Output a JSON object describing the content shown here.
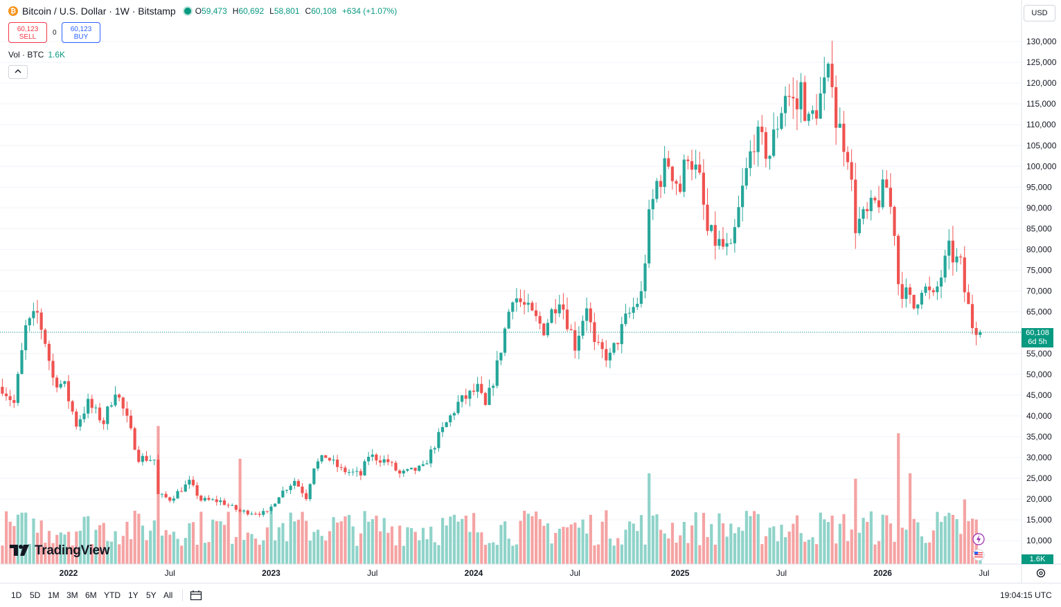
{
  "header": {
    "symbol_title": "Bitcoin / U.S. Dollar · 1W · Bitstamp",
    "btc_badge": "₿",
    "open_label": "O",
    "open": "59,473",
    "high_label": "H",
    "high": "60,692",
    "low_label": "L",
    "low": "58,801",
    "close_label": "C",
    "close": "60,108",
    "change": "+634 (+1.07%)"
  },
  "trade": {
    "sell_price": "60,123",
    "sell_label": "SELL",
    "buy_price": "60,123",
    "buy_label": "BUY",
    "spread": "0"
  },
  "volume_legend": {
    "label": "Vol · BTC",
    "value": "1.6K"
  },
  "currency": "USD",
  "logo_text": "TradingView",
  "price_tag": {
    "price": "60,108",
    "countdown": "6d 5h"
  },
  "volume_tag": "1.6K",
  "range_buttons": [
    "1D",
    "5D",
    "1M",
    "3M",
    "6M",
    "YTD",
    "1Y",
    "5Y",
    "All"
  ],
  "clock": "19:04:15 UTC",
  "colors": {
    "up": "#26a69a",
    "down": "#ef5350",
    "up_volume": "#8fd3c9",
    "down_volume": "#f5a3a3",
    "last_price": "#089981"
  },
  "icons": {
    "calendar": "calendar-icon",
    "settings": "settings-icon",
    "collapse": "chevron-up-icon",
    "lightning": "lightning-icon",
    "flag": "us-flag-icon"
  },
  "chart_data": {
    "type": "candlestick",
    "interval": "1W",
    "ylim": [
      0,
      130000
    ],
    "y_ticks": [
      130000,
      125000,
      120000,
      115000,
      110000,
      105000,
      100000,
      95000,
      90000,
      85000,
      80000,
      75000,
      70000,
      65000,
      60000,
      55000,
      50000,
      45000,
      40000,
      35000,
      30000,
      25000,
      20000,
      15000,
      10000
    ],
    "y_tick_labels": [
      "130,000",
      "125,000",
      "120,000",
      "115,000",
      "110,000",
      "105,000",
      "100,000",
      "95,000",
      "90,000",
      "85,000",
      "80,000",
      "75,000",
      "70,000",
      "65,000",
      "60,000",
      "55,000",
      "50,000",
      "45,000",
      "40,000",
      "35,000",
      "30,000",
      "25,000",
      "20,000",
      "15,000",
      "10,000"
    ],
    "x_tick_labels": [
      {
        "label": "2022",
        "date": "2022-01-03"
      },
      {
        "label": "Jul",
        "date": "2022-07-04"
      },
      {
        "label": "2023",
        "date": "2023-01-02"
      },
      {
        "label": "Jul",
        "date": "2023-07-03"
      },
      {
        "label": "2024",
        "date": "2024-01-01"
      },
      {
        "label": "Jul",
        "date": "2024-07-01"
      },
      {
        "label": "2025",
        "date": "2025-01-06"
      },
      {
        "label": "Jul",
        "date": "2025-07-07"
      },
      {
        "label": "2026",
        "date": "2026-01-05"
      },
      {
        "label": "Jul",
        "date": "2026-07-06"
      }
    ],
    "last_price": 60108,
    "anchors": [
      [
        "2021-09-06",
        47000
      ],
      [
        "2021-09-27",
        43000
      ],
      [
        "2021-10-18",
        61000
      ],
      [
        "2021-11-08",
        64500
      ],
      [
        "2021-11-22",
        58000
      ],
      [
        "2021-12-06",
        49000
      ],
      [
        "2021-12-27",
        47000
      ],
      [
        "2022-01-17",
        38000
      ],
      [
        "2022-02-07",
        43000
      ],
      [
        "2022-03-07",
        38500
      ],
      [
        "2022-03-28",
        46500
      ],
      [
        "2022-04-18",
        39000
      ],
      [
        "2022-05-09",
        30000
      ],
      [
        "2022-06-06",
        29500
      ],
      [
        "2022-06-13",
        21000
      ],
      [
        "2022-07-04",
        20000
      ],
      [
        "2022-08-08",
        24000
      ],
      [
        "2022-08-29",
        19800
      ],
      [
        "2022-10-03",
        19500
      ],
      [
        "2022-11-07",
        17000
      ],
      [
        "2022-12-26",
        16600
      ],
      [
        "2023-01-16",
        21000
      ],
      [
        "2023-02-13",
        24500
      ],
      [
        "2023-03-06",
        20500
      ],
      [
        "2023-03-20",
        28000
      ],
      [
        "2023-04-10",
        30300
      ],
      [
        "2023-05-08",
        27000
      ],
      [
        "2023-06-12",
        25800
      ],
      [
        "2023-06-26",
        30500
      ],
      [
        "2023-07-31",
        29000
      ],
      [
        "2023-08-21",
        26000
      ],
      [
        "2023-10-02",
        27500
      ],
      [
        "2023-10-30",
        35000
      ],
      [
        "2023-12-04",
        43000
      ],
      [
        "2024-01-08",
        46500
      ],
      [
        "2024-01-22",
        42000
      ],
      [
        "2024-02-12",
        52000
      ],
      [
        "2024-03-11",
        69500
      ],
      [
        "2024-04-15",
        64000
      ],
      [
        "2024-05-06",
        61000
      ],
      [
        "2024-06-03",
        69000
      ],
      [
        "2024-07-01",
        57000
      ],
      [
        "2024-07-22",
        67000
      ],
      [
        "2024-08-05",
        56500
      ],
      [
        "2024-09-02",
        54000
      ],
      [
        "2024-09-30",
        63000
      ],
      [
        "2024-10-28",
        69000
      ],
      [
        "2024-11-11",
        87000
      ],
      [
        "2024-11-25",
        96000
      ],
      [
        "2024-12-16",
        101000
      ],
      [
        "2025-01-06",
        94500
      ],
      [
        "2025-01-20",
        104000
      ],
      [
        "2025-02-10",
        96000
      ],
      [
        "2025-02-24",
        84000
      ],
      [
        "2025-03-10",
        82000
      ],
      [
        "2025-04-07",
        79000
      ],
      [
        "2025-04-28",
        94000
      ],
      [
        "2025-05-19",
        107000
      ],
      [
        "2025-06-16",
        103000
      ],
      [
        "2025-07-14",
        118000
      ],
      [
        "2025-08-04",
        114000
      ],
      [
        "2025-08-11",
        119000
      ],
      [
        "2025-08-25",
        110000
      ],
      [
        "2025-10-06",
        123000
      ],
      [
        "2025-10-13",
        111000
      ],
      [
        "2025-11-03",
        104000
      ],
      [
        "2025-11-17",
        86000
      ],
      [
        "2025-12-08",
        88000
      ],
      [
        "2026-01-12",
        95000
      ],
      [
        "2026-01-26",
        85000
      ],
      [
        "2026-02-02",
        72000
      ],
      [
        "2026-03-02",
        66000
      ],
      [
        "2026-03-16",
        71500
      ],
      [
        "2026-04-06",
        68000
      ],
      [
        "2026-05-04",
        79500
      ],
      [
        "2026-05-25",
        76000
      ],
      [
        "2026-06-01",
        70000
      ],
      [
        "2026-06-15",
        62000
      ],
      [
        "2026-06-22",
        59473
      ]
    ],
    "last_candle": {
      "date": "2026-06-29",
      "open": 59473,
      "high": 60692,
      "low": 58801,
      "close": 60108,
      "volume": 1600
    },
    "volume": {
      "baseline": 1000,
      "spikes": [
        {
          "date": "2022-06-13",
          "volume": 38000
        },
        {
          "date": "2022-11-07",
          "volume": 29000
        },
        {
          "date": "2024-11-11",
          "volume": 25000
        },
        {
          "date": "2025-11-17",
          "volume": 23500
        },
        {
          "date": "2026-02-02",
          "volume": 36000
        },
        {
          "date": "2026-02-23",
          "volume": 25000
        },
        {
          "date": "2026-06-01",
          "volume": 17800
        }
      ]
    }
  }
}
